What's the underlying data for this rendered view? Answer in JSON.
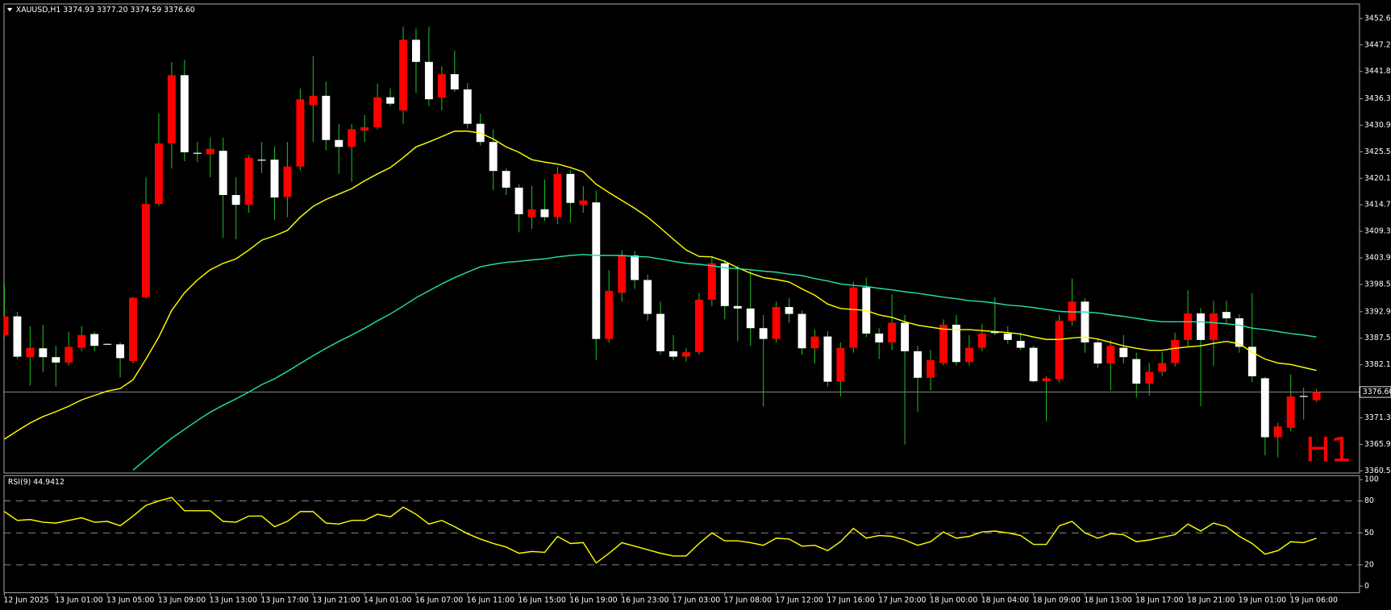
{
  "chart_data": [
    {
      "type": "candlestick",
      "title": "XAUUSD,H1  3374.93 3377.20 3374.59 3376.60",
      "annotation": "H1",
      "annotation_color": "#ff0000",
      "up_color": "#ff0000",
      "down_color": "#ffffff",
      "wick_color": "#20b020",
      "categories": [
        "12 Jun 2025",
        null,
        null,
        null,
        "13 Jun 01:00",
        null,
        null,
        null,
        "13 Jun 05:00",
        null,
        null,
        null,
        "13 Jun 09:00",
        null,
        null,
        null,
        "13 Jun 13:00",
        null,
        null,
        null,
        "13 Jun 17:00",
        null,
        null,
        null,
        "13 Jun 21:00",
        null,
        null,
        null,
        "14 Jun 01:00",
        null,
        null,
        null,
        "16 Jun 07:00",
        null,
        null,
        null,
        "16 Jun 11:00",
        null,
        null,
        null,
        "16 Jun 15:00",
        null,
        null,
        null,
        "16 Jun 19:00",
        null,
        null,
        null,
        "16 Jun 23:00",
        null,
        null,
        null,
        "17 Jun 03:00",
        null,
        null,
        null,
        "17 Jun 08:00",
        null,
        null,
        null,
        "17 Jun 12:00",
        null,
        null,
        null,
        "17 Jun 16:00",
        null,
        null,
        null,
        "17 Jun 20:00",
        null,
        null,
        null,
        "18 Jun 00:00",
        null,
        null,
        null,
        "18 Jun 04:00",
        null,
        null,
        null,
        "18 Jun 09:00",
        null,
        null,
        null,
        "18 Jun 13:00",
        null,
        null,
        null,
        "18 Jun 17:00",
        null,
        null,
        null,
        "18 Jun 21:00",
        null,
        null,
        null,
        "19 Jun 01:00",
        null,
        null,
        null,
        "19 Jun 06:00",
        null,
        null
      ],
      "open": [
        3388.2,
        3392.0,
        3383.7,
        3385.5,
        3383.7,
        3382.6,
        3385.6,
        3388.4,
        3386.4,
        3386.3,
        3382.9,
        3395.9,
        3414.9,
        3427.2,
        3441.1,
        3425.3,
        3425.0,
        3425.7,
        3416.7,
        3414.7,
        3423.9,
        3423.9,
        3416.3,
        3422.5,
        3435.0,
        3436.9,
        3427.9,
        3426.5,
        3429.8,
        3430.5,
        3436.6,
        3433.9,
        3448.3,
        3443.8,
        3436.5,
        3441.3,
        3438.2,
        3431.2,
        3427.5,
        3421.6,
        3418.2,
        3412.2,
        3413.8,
        3412.2,
        3421.0,
        3414.7,
        3415.2,
        3387.4,
        3396.8,
        3404.4,
        3399.4,
        3392.5,
        3384.9,
        3383.8,
        3384.7,
        3395.4,
        3402.8,
        3394.1,
        3393.6,
        3389.6,
        3387.4,
        3393.9,
        3392.5,
        3385.5,
        3387.9,
        3378.7,
        3385.6,
        3397.9,
        3388.5,
        3386.7,
        3390.7,
        3384.9,
        3379.5,
        3382.5,
        3390.3,
        3382.7,
        3385.6,
        3388.8,
        3388.5,
        3387.0,
        3385.6,
        3378.8,
        3379.2,
        3391.1,
        3395.0,
        3386.7,
        3382.4,
        3385.6,
        3383.3,
        3378.3,
        3380.7,
        3382.5,
        3387.2,
        3392.6,
        3387.2,
        3392.9,
        3391.6,
        3385.8,
        3379.4,
        3367.4,
        3369.3,
        3375.8,
        3374.93
      ],
      "high": [
        3398.6,
        3392.9,
        3390.0,
        3390.3,
        3386.0,
        3388.9,
        3390.0,
        3388.9,
        3386.5,
        3386.7,
        3395.9,
        3420.3,
        3433.3,
        3443.8,
        3444.2,
        3427.5,
        3428.4,
        3428.4,
        3420.3,
        3424.8,
        3427.5,
        3426.6,
        3427.5,
        3438.4,
        3445.0,
        3439.8,
        3431.2,
        3431.2,
        3433.0,
        3439.4,
        3438.4,
        3451.0,
        3450.6,
        3451.0,
        3442.9,
        3446.1,
        3439.5,
        3433.3,
        3430.1,
        3422.1,
        3418.9,
        3418.5,
        3419.9,
        3422.5,
        3421.8,
        3418.5,
        3417.6,
        3401.4,
        3405.5,
        3405.3,
        3400.5,
        3395.0,
        3388.2,
        3385.5,
        3396.8,
        3404.1,
        3403.5,
        3402.3,
        3401.4,
        3392.3,
        3395.0,
        3395.7,
        3393.2,
        3389.3,
        3389.0,
        3386.7,
        3399.0,
        3399.9,
        3389.6,
        3396.5,
        3392.3,
        3386.0,
        3385.1,
        3391.4,
        3392.3,
        3388.2,
        3390.5,
        3395.9,
        3390.0,
        3388.7,
        3386.0,
        3379.8,
        3392.3,
        3399.7,
        3395.7,
        3387.4,
        3387.1,
        3388.2,
        3384.6,
        3382.5,
        3384.7,
        3388.7,
        3397.3,
        3393.7,
        3395.2,
        3395.2,
        3392.4,
        3396.7,
        3379.7,
        3370.3,
        3380.2,
        3377.5,
        3377.2
      ],
      "low": [
        3387.8,
        3383.3,
        3377.9,
        3380.6,
        3377.7,
        3382.0,
        3384.9,
        3384.9,
        3386.2,
        3379.5,
        3382.4,
        3395.6,
        3414.5,
        3422.1,
        3423.6,
        3423.4,
        3420.3,
        3408.0,
        3407.7,
        3413.1,
        3421.2,
        3411.7,
        3412.2,
        3421.7,
        3427.5,
        3425.8,
        3421.0,
        3419.4,
        3427.5,
        3430.1,
        3434.8,
        3431.2,
        3437.5,
        3434.8,
        3433.9,
        3437.7,
        3430.2,
        3426.8,
        3417.7,
        3416.7,
        3409.1,
        3409.8,
        3411.4,
        3410.8,
        3411.1,
        3413.1,
        3383.1,
        3386.7,
        3395.0,
        3397.6,
        3391.1,
        3384.2,
        3383.1,
        3382.8,
        3384.2,
        3394.1,
        3391.4,
        3386.9,
        3386.0,
        3373.7,
        3386.7,
        3390.7,
        3384.2,
        3382.4,
        3377.7,
        3375.7,
        3384.6,
        3387.8,
        3383.3,
        3385.1,
        3365.9,
        3372.6,
        3376.9,
        3382.0,
        3382.0,
        3382.0,
        3384.9,
        3388.2,
        3386.4,
        3385.1,
        3378.5,
        3370.6,
        3378.5,
        3390.1,
        3384.6,
        3381.5,
        3376.9,
        3382.4,
        3375.5,
        3375.9,
        3379.9,
        3381.8,
        3385.8,
        3373.7,
        3381.9,
        3390.5,
        3384.6,
        3378.6,
        3363.7,
        3363.3,
        3368.6,
        3371.0,
        3374.59
      ],
      "close": [
        3392.0,
        3383.8,
        3385.6,
        3383.7,
        3382.6,
        3385.8,
        3388.2,
        3386.0,
        3386.3,
        3383.5,
        3395.8,
        3414.9,
        3427.2,
        3441.1,
        3425.4,
        3425.1,
        3426.1,
        3416.7,
        3414.7,
        3424.3,
        3423.7,
        3416.2,
        3422.5,
        3436.2,
        3436.9,
        3427.9,
        3426.5,
        3430.1,
        3430.5,
        3436.6,
        3435.3,
        3448.3,
        3443.8,
        3436.2,
        3441.3,
        3438.2,
        3431.2,
        3427.5,
        3421.6,
        3418.2,
        3412.8,
        3413.8,
        3412.2,
        3421.0,
        3415.1,
        3415.6,
        3387.4,
        3397.2,
        3404.4,
        3399.4,
        3392.5,
        3384.9,
        3383.8,
        3384.7,
        3395.4,
        3402.8,
        3394.1,
        3393.6,
        3389.6,
        3387.4,
        3393.9,
        3392.5,
        3385.5,
        3387.9,
        3378.7,
        3385.6,
        3397.9,
        3388.5,
        3386.7,
        3390.7,
        3384.9,
        3379.5,
        3383.1,
        3390.3,
        3382.7,
        3385.6,
        3388.5,
        3388.6,
        3387.2,
        3385.6,
        3378.8,
        3379.4,
        3391.1,
        3395.0,
        3386.7,
        3382.4,
        3386.0,
        3383.7,
        3378.3,
        3380.7,
        3382.5,
        3387.2,
        3392.6,
        3387.2,
        3392.6,
        3391.6,
        3385.8,
        3379.8,
        3367.4,
        3369.6,
        3375.7,
        3375.6,
        3376.6
      ],
      "series": [
        {
          "color": "#ffff00",
          "values": [
            3367.0,
            3368.7,
            3370.3,
            3371.6,
            3372.6,
            3373.7,
            3375.0,
            3375.9,
            3376.8,
            3377.3,
            3379.1,
            3383.3,
            3387.8,
            3393.2,
            3396.8,
            3399.4,
            3401.5,
            3402.8,
            3403.7,
            3405.5,
            3407.5,
            3408.4,
            3409.5,
            3412.2,
            3414.4,
            3415.8,
            3416.9,
            3418.0,
            3419.6,
            3421.0,
            3422.3,
            3424.3,
            3426.5,
            3427.5,
            3428.6,
            3429.7,
            3429.7,
            3429.3,
            3428.1,
            3426.5,
            3425.4,
            3423.9,
            3423.4,
            3423.0,
            3422.3,
            3421.4,
            3418.9,
            3417.2,
            3415.6,
            3414.0,
            3412.2,
            3410.0,
            3407.7,
            3405.5,
            3404.2,
            3404.1,
            3403.2,
            3401.9,
            3400.8,
            3399.9,
            3399.5,
            3399.0,
            3397.6,
            3396.3,
            3394.5,
            3393.6,
            3393.4,
            3393.2,
            3392.3,
            3391.8,
            3390.9,
            3390.2,
            3389.8,
            3389.4,
            3389.3,
            3389.3,
            3389.1,
            3388.9,
            3388.7,
            3388.4,
            3387.8,
            3387.3,
            3387.3,
            3387.6,
            3387.8,
            3387.4,
            3386.7,
            3386.0,
            3385.5,
            3385.1,
            3385.1,
            3385.5,
            3385.8,
            3386.0,
            3386.5,
            3386.9,
            3386.4,
            3384.7,
            3383.3,
            3382.5,
            3382.2,
            3381.6,
            3381.0
          ]
        },
        {
          "color": "#20e0b0",
          "values": [
            null,
            null,
            null,
            null,
            null,
            null,
            null,
            null,
            null,
            null,
            3360.7,
            3362.9,
            3365.1,
            3367.2,
            3369.0,
            3370.8,
            3372.5,
            3373.9,
            3375.2,
            3376.6,
            3378.1,
            3379.3,
            3380.8,
            3382.4,
            3384.0,
            3385.5,
            3386.9,
            3388.2,
            3389.6,
            3391.1,
            3392.5,
            3394.1,
            3395.8,
            3397.2,
            3398.6,
            3399.9,
            3401.0,
            3402.1,
            3402.6,
            3403.0,
            3403.2,
            3403.5,
            3403.7,
            3404.1,
            3404.4,
            3404.6,
            3404.4,
            3404.4,
            3404.4,
            3404.2,
            3404.1,
            3403.7,
            3403.2,
            3402.8,
            3402.6,
            3402.3,
            3401.9,
            3401.7,
            3401.5,
            3401.2,
            3401.0,
            3400.6,
            3400.3,
            3399.7,
            3399.2,
            3398.6,
            3398.3,
            3398.1,
            3397.7,
            3397.4,
            3397.0,
            3396.7,
            3396.3,
            3395.9,
            3395.6,
            3395.2,
            3395.0,
            3394.7,
            3394.3,
            3394.1,
            3393.8,
            3393.4,
            3393.0,
            3392.9,
            3392.9,
            3392.7,
            3392.3,
            3392.0,
            3391.6,
            3391.2,
            3390.9,
            3390.9,
            3390.9,
            3390.9,
            3390.7,
            3390.5,
            3390.2,
            3389.6,
            3389.3,
            3388.9,
            3388.5,
            3388.2,
            3387.8
          ]
        }
      ],
      "current_price": {
        "value": 3376.6,
        "label": "3376.60"
      },
      "ylim": [
        3360.2,
        3455.5
      ],
      "yticks": [
        3452.65,
        3447.25,
        3441.85,
        {
          "value": 3436.3,
          "label": "3436.30"
        },
        {
          "value": 3430.9,
          "label": "3430.90"
        },
        {
          "value": 3425.5,
          "label": "3425.50"
        },
        {
          "value": 3420.1,
          "label": "3420.10"
        },
        {
          "value": 3414.7,
          "label": "3414.70"
        },
        {
          "value": 3409.3,
          "label": "3409.30"
        },
        {
          "value": 3403.9,
          "label": "3403.90"
        },
        {
          "value": 3398.5,
          "label": "3398.50"
        },
        3392.95,
        3387.55,
        3382.15,
        3371.35,
        3365.95,
        3360.55
      ]
    },
    {
      "type": "line",
      "title": "RSI(9) 44.9412",
      "levels": [
        20,
        50,
        80
      ],
      "series": [
        {
          "color": "#ffff00",
          "values": [
            70.0,
            61.7,
            62.5,
            60.0,
            59.2,
            61.7,
            64.2,
            60.0,
            60.8,
            56.7,
            65.8,
            75.8,
            80.0,
            83.3,
            70.8,
            70.8,
            70.8,
            60.8,
            60.0,
            65.8,
            65.8,
            55.8,
            60.8,
            70.0,
            70.0,
            59.2,
            58.3,
            61.7,
            61.7,
            67.5,
            65.0,
            74.2,
            67.5,
            58.3,
            61.7,
            55.8,
            49.2,
            44.2,
            40.0,
            36.7,
            30.8,
            32.5,
            31.7,
            46.7,
            40.0,
            40.8,
            21.7,
            30.8,
            40.8,
            37.5,
            34.2,
            30.8,
            28.3,
            28.3,
            40.0,
            50.0,
            42.5,
            42.5,
            40.8,
            38.3,
            45.0,
            44.2,
            37.5,
            38.3,
            33.3,
            41.7,
            54.2,
            45.0,
            47.5,
            46.7,
            43.3,
            38.3,
            41.7,
            50.8,
            45.0,
            46.7,
            50.8,
            51.7,
            50.0,
            47.5,
            39.2,
            39.2,
            56.7,
            60.8,
            50.0,
            45.0,
            49.2,
            48.3,
            41.7,
            43.3,
            45.8,
            48.3,
            58.3,
            51.7,
            59.2,
            55.8,
            46.7,
            40.0,
            30.0,
            33.3,
            41.7,
            40.8,
            44.9412
          ]
        }
      ],
      "ylim": [
        0,
        100
      ],
      "yticks": [
        100,
        80,
        50,
        20,
        0
      ]
    }
  ]
}
